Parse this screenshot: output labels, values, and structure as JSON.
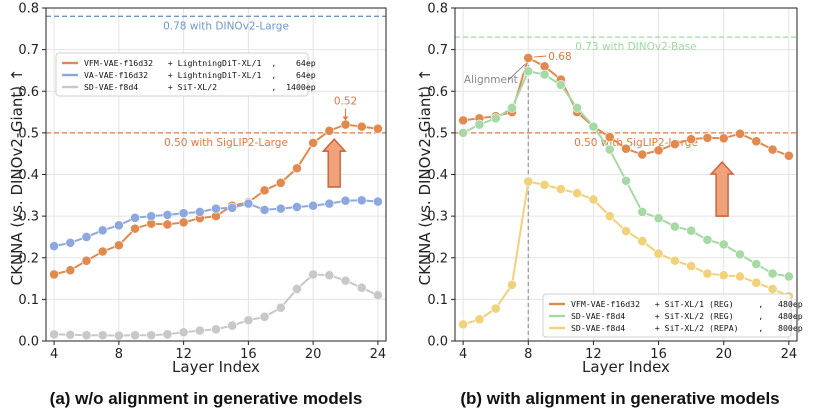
{
  "chart_data": [
    {
      "type": "line",
      "caption": "(a) w/o alignment in generative models",
      "xlabel": "Layer Index",
      "ylabel": "CKNNA (vs. DINOv2-Giant) ↑",
      "xlim": [
        3.5,
        24.5
      ],
      "ylim": [
        0.0,
        0.8
      ],
      "xticks": [
        4,
        8,
        12,
        16,
        20,
        24
      ],
      "yticks": [
        0.0,
        0.1,
        0.2,
        0.3,
        0.4,
        0.5,
        0.6,
        0.7,
        0.8
      ],
      "ytick_labels": [
        "0.0",
        "0.1",
        "0.2",
        "0.3",
        "0.4",
        "0.5",
        "0.6",
        "0.7",
        "0.8"
      ],
      "grid": true,
      "x": [
        4,
        5,
        6,
        7,
        8,
        9,
        10,
        11,
        12,
        13,
        14,
        15,
        16,
        17,
        18,
        19,
        20,
        21,
        22,
        23,
        24
      ],
      "series": [
        {
          "name": "VFM-VAE-f16d32",
          "label": "VFM-VAE-f16d32   + LightningDiT-XL/1  ,    64ep",
          "color": "#e08a4f",
          "values": [
            0.16,
            0.17,
            0.193,
            0.215,
            0.23,
            0.27,
            0.282,
            0.28,
            0.285,
            0.295,
            0.3,
            0.325,
            0.333,
            0.362,
            0.38,
            0.415,
            0.476,
            0.505,
            0.52,
            0.515,
            0.51
          ]
        },
        {
          "name": "VA-VAE-f16d32",
          "label": "VA-VAE-f16d32    + LightningDiT-XL/1  ,    64ep",
          "color": "#8da8de",
          "values": [
            0.228,
            0.236,
            0.25,
            0.266,
            0.278,
            0.296,
            0.3,
            0.303,
            0.307,
            0.31,
            0.318,
            0.32,
            0.33,
            0.315,
            0.318,
            0.322,
            0.325,
            0.33,
            0.337,
            0.338,
            0.335
          ]
        },
        {
          "name": "SD-VAE-f8d4",
          "label": "SD-VAE-f8d4      + SiT-XL/2           ,  1400ep",
          "color": "#c8c8c8",
          "values": [
            0.016,
            0.015,
            0.014,
            0.014,
            0.013,
            0.014,
            0.014,
            0.016,
            0.021,
            0.025,
            0.028,
            0.037,
            0.05,
            0.058,
            0.08,
            0.125,
            0.16,
            0.158,
            0.145,
            0.128,
            0.11
          ]
        }
      ],
      "reference_lines": [
        {
          "label": "0.78 with DINOv2-Large",
          "value": 0.78,
          "color": "#6e96c8"
        },
        {
          "label": "0.50 with SigLIP2-Large",
          "value": 0.5,
          "color": "#e07840"
        }
      ],
      "annotations": [
        {
          "text": "0.52",
          "x": 22,
          "y": 0.52,
          "color": "#e07840"
        }
      ],
      "legend_position": "upper-left"
    },
    {
      "type": "line",
      "caption": "(b) with alignment in generative models",
      "xlabel": "Layer Index",
      "ylabel": "CKNNA (vs. DINOv2-Giant) ↑",
      "xlim": [
        3.5,
        24.5
      ],
      "ylim": [
        0.0,
        0.8
      ],
      "xticks": [
        4,
        8,
        12,
        16,
        20,
        24
      ],
      "yticks": [
        0.0,
        0.1,
        0.2,
        0.3,
        0.4,
        0.5,
        0.6,
        0.7,
        0.8
      ],
      "ytick_labels": [
        "0.0",
        "0.1",
        "0.2",
        "0.3",
        "0.4",
        "0.5",
        "0.6",
        "0.7",
        "0.8"
      ],
      "grid": true,
      "x": [
        4,
        5,
        6,
        7,
        8,
        9,
        10,
        11,
        12,
        13,
        14,
        15,
        16,
        17,
        18,
        19,
        20,
        21,
        22,
        23,
        24
      ],
      "series": [
        {
          "name": "VFM-VAE-f16d32",
          "label": "VFM-VAE-f16d32   + SiT-XL/1 (REG)     ,   480ep",
          "color": "#e08a4f",
          "values": [
            0.53,
            0.535,
            0.54,
            0.55,
            0.68,
            0.66,
            0.628,
            0.55,
            0.515,
            0.49,
            0.462,
            0.448,
            0.458,
            0.473,
            0.485,
            0.488,
            0.487,
            0.498,
            0.48,
            0.46,
            0.445
          ]
        },
        {
          "name": "SD-VAE-f8d4 (REG)",
          "label": "SD-VAE-f8d4      + SiT-XL/2 (REG)     ,   480ep",
          "color": "#a6d9a6",
          "values": [
            0.5,
            0.52,
            0.535,
            0.56,
            0.648,
            0.64,
            0.615,
            0.56,
            0.515,
            0.46,
            0.385,
            0.31,
            0.295,
            0.275,
            0.265,
            0.243,
            0.232,
            0.208,
            0.185,
            0.162,
            0.155
          ]
        },
        {
          "name": "SD-VAE-f8d4 (REPA)",
          "label": "SD-VAE-f8d4      + SiT-XL/2 (REPA)    ,   800ep",
          "color": "#f0d27a",
          "values": [
            0.04,
            0.052,
            0.078,
            0.135,
            0.383,
            0.375,
            0.365,
            0.355,
            0.34,
            0.3,
            0.264,
            0.24,
            0.21,
            0.193,
            0.18,
            0.162,
            0.158,
            0.155,
            0.14,
            0.125,
            0.108
          ]
        }
      ],
      "reference_lines": [
        {
          "label": "0.73 with DINOv2-Base",
          "value": 0.73,
          "color": "#9ed99e"
        },
        {
          "label": "0.50 with SigLIP2-Large",
          "value": 0.5,
          "color": "#e07840"
        }
      ],
      "annotations": [
        {
          "text": "0.68",
          "x": 8,
          "y": 0.68,
          "color": "#e07840"
        },
        {
          "text": "Alignment",
          "x": 8,
          "y": 0.63,
          "color": "#888888"
        }
      ],
      "legend_position": "lower-right"
    }
  ]
}
